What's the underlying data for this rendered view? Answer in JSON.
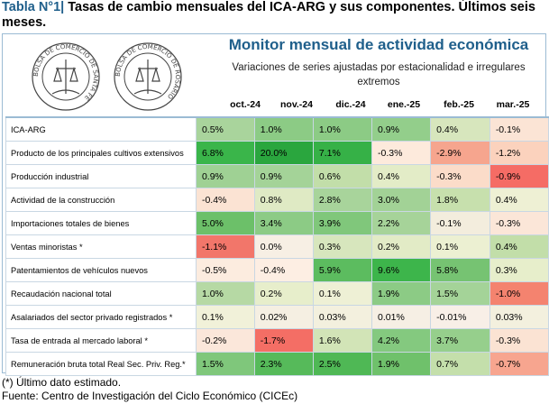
{
  "title": {
    "prefix": "Tabla N°1|",
    "text": " Tasas de cambio mensuales del ICA-ARG y sus componentes. Últimos seis meses."
  },
  "header": {
    "monitor_title": "Monitor mensual de actividad económica",
    "monitor_subtitle": "Variaciones de series ajustadas por estacionalidad e irregulares extremos"
  },
  "logos": {
    "left_seal_text": "BOLSA DE COMERCIO DE SANTA FE",
    "right_seal_text": "BOLSA DE COMERCIO DE ROSARIO"
  },
  "columns": [
    "oct.-24",
    "nov.-24",
    "dic.-24",
    "ene.-25",
    "feb.-25",
    "mar.-25"
  ],
  "rows": [
    {
      "label": "ICA-ARG",
      "values": [
        "0.5%",
        "1.0%",
        "1.0%",
        "0.9%",
        "0.4%",
        "-0.1%"
      ],
      "colors": [
        "#a9d49c",
        "#8ccb85",
        "#8ccb85",
        "#93ce8b",
        "#d7e6bd",
        "#fbe4d5"
      ]
    },
    {
      "label": "Producto de los principales cultivos extensivos",
      "values": [
        "6.8%",
        "20.0%",
        "7.1%",
        "-0.3%",
        "-2.9%",
        "-1.2%"
      ],
      "colors": [
        "#3ab54a",
        "#2aa63e",
        "#36b147",
        "#fdeadc",
        "#f6a58e",
        "#fbd2bd"
      ]
    },
    {
      "label": "Producción industrial",
      "values": [
        "0.9%",
        "0.9%",
        "0.6%",
        "0.4%",
        "-0.3%",
        "-0.9%"
      ],
      "colors": [
        "#9fd194",
        "#a4d398",
        "#c2dea9",
        "#e3ecc7",
        "#fbdcc9",
        "#f56c65"
      ]
    },
    {
      "label": "Actividad de la construcción",
      "values": [
        "-0.4%",
        "0.8%",
        "2.8%",
        "3.0%",
        "1.8%",
        "0.4%"
      ],
      "colors": [
        "#fbe3d3",
        "#dfeac4",
        "#a8d49b",
        "#a2d296",
        "#c7e0ad",
        "#eef0d4"
      ]
    },
    {
      "label": "Importaciones totales de bienes",
      "values": [
        "5.0%",
        "3.4%",
        "3.9%",
        "2.2%",
        "-0.1%",
        "-0.3%"
      ],
      "colors": [
        "#6cc069",
        "#8ccb85",
        "#80c77b",
        "#a6d399",
        "#f3eddd",
        "#fbe6d8"
      ]
    },
    {
      "label": "Ventas minoristas *",
      "values": [
        "-1.1%",
        "0.0%",
        "0.3%",
        "0.2%",
        "0.1%",
        "0.4%"
      ],
      "colors": [
        "#f2766a",
        "#f7efe4",
        "#d7e6bd",
        "#e2ebc6",
        "#ecf0d2",
        "#c2dea9"
      ]
    },
    {
      "label": "Patentamientos de vehículos nuevos",
      "values": [
        "-0.5%",
        "-0.4%",
        "5.9%",
        "9.6%",
        "5.8%",
        "0.3%"
      ],
      "colors": [
        "#fcecdf",
        "#fdeee3",
        "#5cbc5f",
        "#3db54b",
        "#76c372",
        "#e7eecb"
      ]
    },
    {
      "label": "Recaudación nacional total",
      "values": [
        "1.0%",
        "0.2%",
        "0.1%",
        "1.9%",
        "1.5%",
        "-1.0%"
      ],
      "colors": [
        "#b6d9a4",
        "#e7eecb",
        "#eef0d5",
        "#8ccb85",
        "#a4d398",
        "#f4836f"
      ]
    },
    {
      "label": "Asalariados del sector privado registrados *",
      "values": [
        "0.1%",
        "0.02%",
        "0.03%",
        "0.01%",
        "-0.01%",
        "0.03%"
      ],
      "colors": [
        "#f1f1d9",
        "#f5efe2",
        "#f3f0de",
        "#f6efe4",
        "#f8efe7",
        "#f3f0de"
      ]
    },
    {
      "label": "Tasa de entrada al mercado laboral *",
      "values": [
        "-0.2%",
        "-1.7%",
        "1.6%",
        "4.2%",
        "3.7%",
        "-0.3%"
      ],
      "colors": [
        "#fbe7da",
        "#f46e65",
        "#d2e4b7",
        "#84c97f",
        "#96cf8c",
        "#fbe3d3"
      ]
    },
    {
      "label": "Remuneración bruta total Real Sec. Priv. Reg.*",
      "values": [
        "1.5%",
        "2.3%",
        "2.5%",
        "1.9%",
        "0.7%",
        "-0.7%"
      ],
      "colors": [
        "#7fc77b",
        "#56ba5a",
        "#4fb855",
        "#6fc16b",
        "#c4dfab",
        "#f7a58f"
      ]
    }
  ],
  "footnotes": {
    "note": "(*) Último dato estimado.",
    "source": "Fuente: Centro de Investigación del Ciclo Económico (CICEc)"
  }
}
